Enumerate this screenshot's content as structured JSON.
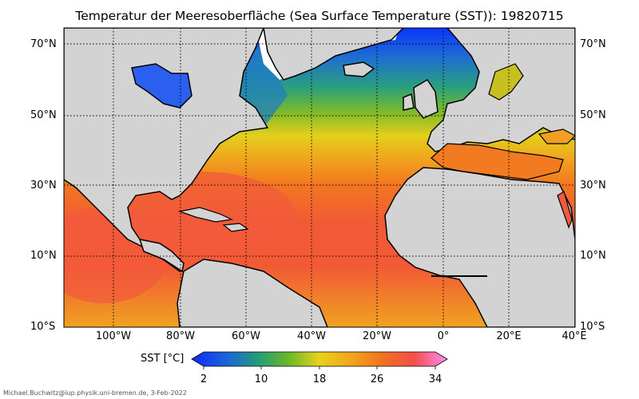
{
  "title": "Temperatur der Meeresoberfläche (Sea Surface Temperature (SST)):  19820715",
  "lat_labels": [
    "70°N",
    "50°N",
    "30°N",
    "10°N",
    "10°S"
  ],
  "lon_labels": [
    "100°W",
    "80°W",
    "60°W",
    "40°W",
    "20°W",
    "0°",
    "20°E",
    "40°E"
  ],
  "colorbar": {
    "label": "SST [°C]",
    "ticks": [
      "2",
      "10",
      "18",
      "26",
      "34"
    ]
  },
  "credit": "Michael.Buchwitz@iup.physik.uni-bremen.de, 3-Feb-2022",
  "colors": {
    "land": "#d3d3d3",
    "coast": "#000000",
    "ice": "#ffffff",
    "cold": "#1f3cff",
    "cool": "#1fa0a0",
    "mild": "#6bb52a",
    "warm18": "#e6d21e",
    "warm": "#f28a1f",
    "hot": "#f2563c",
    "hottest": "#ff8cf0"
  }
}
